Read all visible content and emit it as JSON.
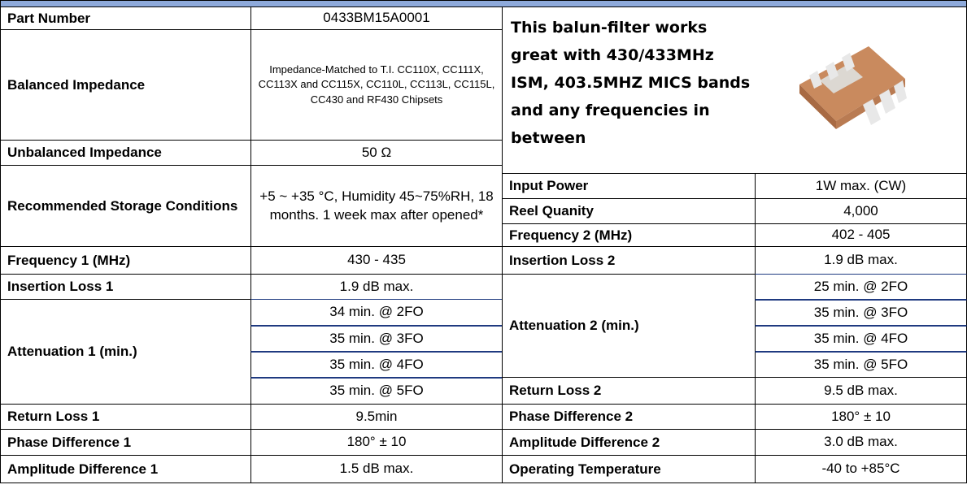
{
  "left_rows": [
    {
      "label": "Part Number",
      "values": [
        "0433BM15A0001"
      ]
    },
    {
      "label": "Balanced Impedance",
      "values": [
        "Impedance-Matched to T.I. CC110X, CC111X, CC113X and CC115X, CC110L, CC113L, CC115L, CC430 and RF430 Chipsets"
      ]
    },
    {
      "label": "Unbalanced Impedance",
      "values": [
        "50 Ω"
      ]
    },
    {
      "label": "Recommended Storage Conditions",
      "values": [
        "+5 ~ +35 °C, Humidity 45~75%RH, 18 months. 1 week max after opened*"
      ]
    },
    {
      "label": "Frequency 1 (MHz)",
      "values": [
        "430 - 435"
      ]
    },
    {
      "label": "Insertion Loss 1",
      "values": [
        "1.9 dB max."
      ]
    },
    {
      "label": "Attenuation 1 (min.)",
      "values": [
        "34 min. @ 2FO",
        "35 min. @ 3FO",
        "35 min. @ 4FO",
        "35 min. @ 5FO"
      ]
    },
    {
      "label": "Return Loss 1",
      "values": [
        "9.5min"
      ]
    },
    {
      "label": "Phase Difference 1",
      "values": [
        "180° ± 10"
      ]
    },
    {
      "label": "Amplitude Difference 1",
      "values": [
        "1.5 dB max."
      ]
    }
  ],
  "description": "This balun-filter works great with 430/433MHz ISM, 403.5MHZ MICS bands and any frequencies in between",
  "right_rows": [
    {
      "label": "Input Power",
      "values": [
        "1W max. (CW)"
      ]
    },
    {
      "label": "Reel Quanity",
      "values": [
        "4,000"
      ]
    },
    {
      "label": "Frequency 2 (MHz)",
      "values": [
        "402 - 405"
      ]
    },
    {
      "label": "Insertion Loss 2",
      "values": [
        "1.9 dB max."
      ]
    },
    {
      "label": "Attenuation 2 (min.)",
      "values": [
        "25 min. @ 2FO",
        "35 min. @ 3FO",
        "35 min. @ 4FO",
        "35 min. @ 5FO"
      ]
    },
    {
      "label": "Return Loss 2",
      "values": [
        "9.5 dB max."
      ]
    },
    {
      "label": "Phase Difference 2",
      "values": [
        "180° ± 10"
      ]
    },
    {
      "label": "Amplitude Difference 2",
      "values": [
        "3.0 dB max."
      ]
    },
    {
      "label": "Operating Temperature",
      "values": [
        "-40 to +85°C"
      ]
    }
  ]
}
